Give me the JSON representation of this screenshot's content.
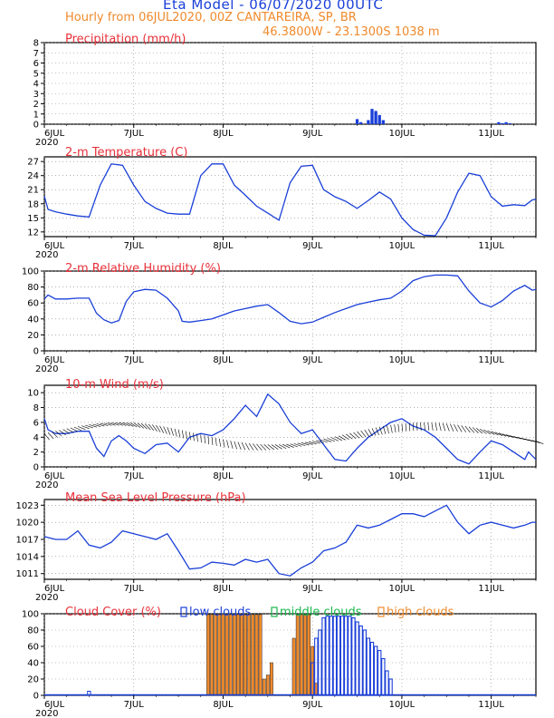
{
  "header": {
    "title": "Eta Model - 06/07/2020 00UTC",
    "subtitle": "Hourly from 06JUL2020, 00Z  CANTAREIRA, SP, BR",
    "coords": "46.3800W - 23.1300S    1038  m"
  },
  "colors": {
    "title": "#1a3fd8",
    "subtitle": "#f08a2c",
    "panel_title": "#e8313a",
    "line": "#1a3fd8",
    "low": "#1a3fd8",
    "mid": "#16b84a",
    "high": "#f08a2c",
    "bar_edge": "#2a2a2a"
  },
  "x_axis": {
    "tick_labels": [
      "6JUL",
      "7JUL",
      "8JUL",
      "9JUL",
      "10JUL",
      "11JUL"
    ],
    "year_label": "2020",
    "range_hours": [
      0,
      132
    ]
  },
  "chart_data": [
    {
      "id": "precip",
      "type": "bar",
      "title": "Precipitation (mm/h)",
      "ylim": [
        0,
        8
      ],
      "yticks": [
        0,
        1,
        2,
        3,
        4,
        5,
        6,
        7,
        8
      ],
      "x_hours": [
        84,
        85,
        87,
        88,
        89,
        90,
        91,
        122,
        123,
        124,
        125
      ],
      "values": [
        0.5,
        0.2,
        0.4,
        1.5,
        1.3,
        0.9,
        0.4,
        0.2,
        0.1,
        0.2,
        0.1
      ]
    },
    {
      "id": "temp",
      "type": "line",
      "title": "2-m Temperature (C)",
      "ylim": [
        11,
        28
      ],
      "yticks": [
        12,
        15,
        18,
        21,
        24,
        27
      ],
      "x_hours": [
        0,
        1,
        3,
        6,
        9,
        12,
        15,
        18,
        21,
        24,
        27,
        30,
        33,
        36,
        39,
        42,
        45,
        48,
        51,
        54,
        57,
        60,
        63,
        66,
        69,
        72,
        75,
        78,
        81,
        84,
        87,
        90,
        93,
        96,
        99,
        102,
        105,
        108,
        111,
        114,
        117,
        120,
        123,
        126,
        129,
        131,
        132
      ],
      "values": [
        19.6,
        16.8,
        16.3,
        15.8,
        15.4,
        15.2,
        22.0,
        26.5,
        26.2,
        22.0,
        18.5,
        17.0,
        16.0,
        15.8,
        15.8,
        24.0,
        26.5,
        26.5,
        22.0,
        19.8,
        17.5,
        16.0,
        14.5,
        22.5,
        26.0,
        26.2,
        21.0,
        19.5,
        18.5,
        17.0,
        18.7,
        20.5,
        19.0,
        15.0,
        12.5,
        11.3,
        11.2,
        15.0,
        20.5,
        24.5,
        24.0,
        19.5,
        17.5,
        17.8,
        17.6,
        18.8,
        19.0
      ]
    },
    {
      "id": "rh",
      "type": "line",
      "title": "2-m Relative Humidity (%)",
      "ylim": [
        0,
        100
      ],
      "yticks": [
        0,
        20,
        40,
        60,
        80,
        100
      ],
      "x_hours": [
        0,
        1,
        3,
        6,
        9,
        12,
        14,
        16,
        18,
        20,
        22,
        24,
        27,
        30,
        33,
        36,
        37,
        39,
        42,
        45,
        48,
        51,
        54,
        57,
        60,
        63,
        66,
        69,
        72,
        75,
        78,
        81,
        84,
        87,
        90,
        93,
        96,
        99,
        102,
        105,
        108,
        111,
        114,
        117,
        120,
        123,
        126,
        129,
        131,
        132
      ],
      "values": [
        65,
        70,
        65,
        65,
        66,
        66,
        47,
        39,
        35,
        38,
        62,
        74,
        77,
        76,
        66,
        50,
        37,
        36,
        38,
        40,
        45,
        50,
        53,
        56,
        58,
        48,
        37,
        34,
        36,
        42,
        48,
        53,
        58,
        61,
        64,
        66,
        75,
        88,
        93,
        95,
        95,
        94,
        75,
        60,
        55,
        63,
        75,
        82,
        76,
        77
      ]
    },
    {
      "id": "wind",
      "type": "line",
      "title": "10-m Wind (m/s)",
      "ylim": [
        0,
        11
      ],
      "yticks": [
        0,
        2,
        4,
        6,
        8,
        10
      ],
      "x_hours": [
        0,
        1,
        3,
        6,
        9,
        12,
        14,
        16,
        18,
        20,
        22,
        24,
        27,
        30,
        33,
        36,
        39,
        42,
        45,
        48,
        51,
        54,
        57,
        60,
        63,
        66,
        69,
        72,
        75,
        78,
        81,
        84,
        87,
        90,
        93,
        96,
        99,
        102,
        105,
        108,
        111,
        114,
        117,
        120,
        123,
        126,
        129,
        130,
        132
      ],
      "values": [
        6.5,
        5.0,
        4.5,
        4.5,
        4.8,
        4.8,
        2.5,
        1.4,
        3.5,
        4.2,
        3.5,
        2.5,
        1.8,
        3.0,
        3.2,
        2.0,
        4.0,
        4.5,
        4.2,
        5.0,
        6.5,
        8.3,
        6.8,
        9.8,
        8.5,
        6.0,
        4.5,
        5.0,
        3.0,
        1.0,
        0.8,
        2.5,
        4.0,
        5.0,
        6.0,
        6.5,
        5.5,
        5.0,
        4.0,
        2.5,
        1.0,
        0.4,
        2.0,
        3.5,
        3.0,
        2.0,
        1.0,
        2.0,
        1.0
      ]
    },
    {
      "id": "mslp",
      "type": "line",
      "title": "Mean Sea Level Pressure (hPa)",
      "ylim": [
        1010,
        1024
      ],
      "yticks": [
        1011,
        1014,
        1017,
        1020,
        1023
      ],
      "x_hours": [
        0,
        3,
        6,
        9,
        12,
        15,
        18,
        21,
        24,
        27,
        30,
        33,
        36,
        39,
        42,
        45,
        48,
        51,
        54,
        57,
        60,
        63,
        66,
        69,
        72,
        75,
        78,
        81,
        84,
        87,
        90,
        93,
        96,
        99,
        102,
        105,
        108,
        111,
        114,
        117,
        120,
        123,
        126,
        129,
        131,
        132
      ],
      "values": [
        1017.5,
        1017,
        1017,
        1018.5,
        1016,
        1015.5,
        1016.5,
        1018.5,
        1018,
        1017.5,
        1017,
        1018,
        1015,
        1011.8,
        1012,
        1013,
        1012.8,
        1012.5,
        1013.5,
        1013,
        1013.5,
        1011,
        1010.6,
        1012,
        1013,
        1015,
        1015.5,
        1016.5,
        1019.5,
        1019,
        1019.5,
        1020.5,
        1021.5,
        1021.5,
        1021,
        1022,
        1023,
        1020,
        1018,
        1019.5,
        1020,
        1019.5,
        1019,
        1019.5,
        1020,
        1020
      ]
    },
    {
      "id": "cloud",
      "type": "bar",
      "title": "Cloud Cover (%)",
      "legend": [
        "low clouds",
        "middle clouds",
        "high clouds"
      ],
      "ylim": [
        0,
        100
      ],
      "yticks": [
        0,
        20,
        40,
        60,
        80,
        100
      ],
      "series": [
        {
          "name": "high clouds",
          "x_hours": [
            44,
            45,
            46,
            47,
            48,
            49,
            50,
            51,
            52,
            53,
            54,
            55,
            56,
            57,
            58,
            59,
            60,
            61,
            67,
            68,
            69,
            70,
            71,
            72,
            73,
            74,
            75,
            76,
            77,
            78,
            79,
            80,
            81,
            82,
            83,
            84,
            85,
            86,
            87,
            88,
            89,
            90,
            91,
            92,
            93,
            94,
            95,
            96,
            97,
            98,
            99,
            100,
            101,
            102,
            103,
            104,
            105,
            106,
            107,
            108,
            109,
            110,
            111,
            112,
            113,
            114,
            115,
            116,
            117,
            118,
            119,
            120,
            121,
            122,
            123,
            124,
            125,
            126,
            127,
            128,
            129,
            130,
            131
          ],
          "values": [
            99,
            99,
            99,
            99,
            99,
            99,
            99,
            99,
            99,
            99,
            99,
            99,
            99,
            99,
            99,
            20,
            25,
            40,
            70,
            99,
            99,
            99,
            99,
            60,
            15,
            0,
            0,
            0,
            0,
            0,
            0,
            0,
            0,
            0,
            0,
            0,
            0,
            0,
            0,
            0,
            0,
            0,
            0,
            0,
            0,
            0,
            0,
            0,
            0,
            0,
            0,
            0,
            0,
            0,
            0,
            0,
            0,
            0,
            0,
            0,
            0,
            0,
            0,
            0,
            0,
            0,
            0,
            0,
            0,
            0,
            0,
            0,
            0,
            0,
            0,
            0,
            0,
            0,
            0,
            0,
            0,
            0,
            0
          ]
        },
        {
          "name": "low clouds",
          "x_hours": [
            72,
            73,
            74,
            75,
            76,
            77,
            78,
            79,
            80,
            81,
            82,
            83,
            84,
            85,
            86,
            87,
            88,
            89,
            90,
            91,
            92,
            93,
            94,
            95,
            96,
            97,
            98,
            99,
            100,
            101,
            102,
            103,
            104,
            105,
            106,
            107,
            108,
            109,
            110,
            111,
            112,
            113,
            114,
            115,
            116,
            117,
            118,
            119,
            120,
            121,
            122,
            123,
            124,
            125,
            126,
            127,
            128,
            129,
            130,
            131
          ],
          "values": [
            40,
            70,
            80,
            95,
            97,
            97,
            97,
            97,
            97,
            97,
            97,
            95,
            90,
            85,
            80,
            70,
            65,
            60,
            55,
            45,
            30,
            20,
            0,
            0,
            0,
            0,
            0,
            0,
            0,
            0,
            0,
            0,
            0,
            0,
            0,
            0,
            0,
            0,
            0,
            0,
            0,
            0,
            0,
            0,
            0,
            0,
            0,
            0,
            0,
            0,
            0,
            0,
            0,
            0,
            0,
            0,
            0,
            0,
            0,
            0
          ]
        }
      ],
      "small_bar": {
        "x_hours": [
          12
        ],
        "values": [
          5
        ]
      }
    }
  ]
}
